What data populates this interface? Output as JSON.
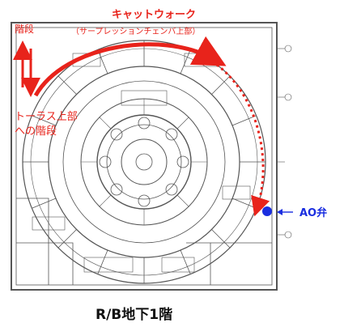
{
  "labels": {
    "stairs_top": "階段",
    "catwalk_title": "キャットウォーク",
    "catwalk_note": "（サープレッションチェンバ上部）",
    "torus_stairs_line1": "トーラス上部",
    "torus_stairs_line2": "への階段",
    "ao_valve": "AO弁",
    "floor_caption": "R/B地下1階"
  },
  "colors": {
    "route_red": "#e8231b",
    "valve_blue": "#1a2ee0",
    "plan_gray": "#555555"
  }
}
